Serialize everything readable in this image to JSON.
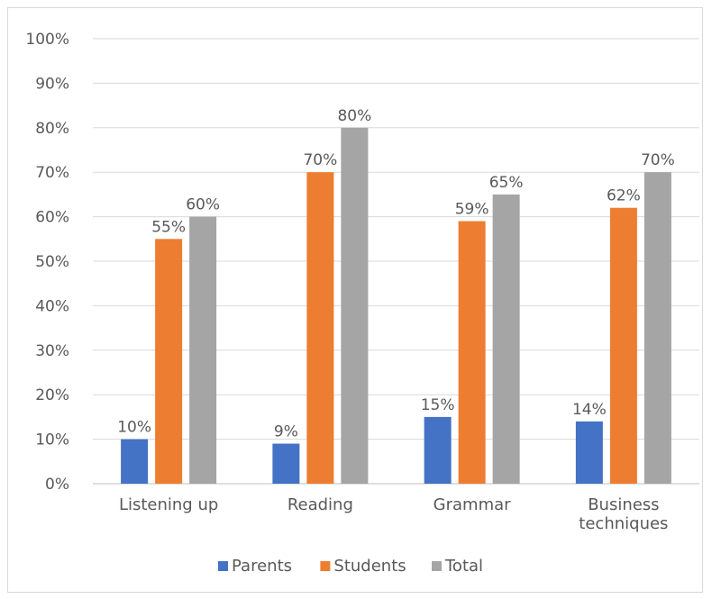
{
  "chart_data": {
    "type": "bar",
    "title": "",
    "xlabel": "",
    "ylabel": "",
    "ylim": [
      0,
      100
    ],
    "ytick_step": 10,
    "value_suffix": "%",
    "grid": true,
    "legend_position": "bottom",
    "categories": [
      [
        "Listening up"
      ],
      [
        "Reading"
      ],
      [
        "Grammar"
      ],
      [
        "Business",
        "techniques"
      ]
    ],
    "series": [
      {
        "name": "Parents",
        "color": "#4472c4",
        "values": [
          10,
          9,
          15,
          14
        ]
      },
      {
        "name": "Students",
        "color": "#ed7d31",
        "values": [
          55,
          70,
          59,
          62
        ]
      },
      {
        "name": "Total",
        "color": "#a5a5a5",
        "values": [
          60,
          80,
          65,
          70
        ]
      }
    ]
  }
}
